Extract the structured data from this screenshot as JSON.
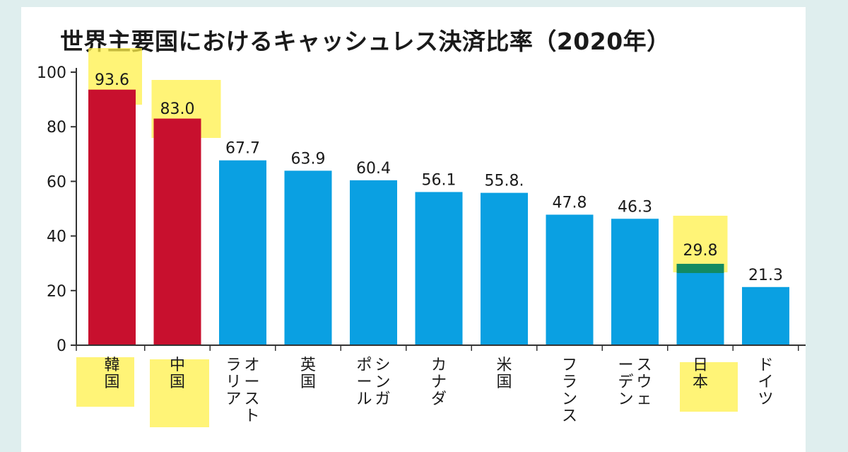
{
  "title": "世界主要国におけるキャッシュレス決済比率（2020年）",
  "colors": {
    "background": "#dfeeee",
    "highlight_bar": "#c8102e",
    "normal_bar": "#0aa0e2",
    "marker": "#fff04a",
    "japan_band": "#138a62",
    "axis": "#333333"
  },
  "chart_data": {
    "type": "bar",
    "title": "世界主要国におけるキャッシュレス決済比率（2020年）",
    "xlabel": "",
    "ylabel": "",
    "ylim": [
      0,
      100
    ],
    "yticks": [
      0,
      20,
      40,
      60,
      80,
      100
    ],
    "grid": false,
    "categories": [
      "韓国",
      "中国",
      "オーストラリア",
      "英国",
      "シンガポール",
      "カナダ",
      "米国",
      "フランス",
      "スウェーデン",
      "日本",
      "ドイツ"
    ],
    "values": [
      93.6,
      83.0,
      67.7,
      63.9,
      60.4,
      56.1,
      55.8,
      47.8,
      46.3,
      29.8,
      21.3
    ],
    "value_labels": [
      "93.6",
      "83.0",
      "67.7",
      "63.9",
      "60.4",
      "56.1",
      "55.8.",
      "47.8",
      "46.3",
      "29.8",
      "21.3"
    ],
    "highlighted": [
      "韓国",
      "中国"
    ],
    "marker_highlights": [
      "韓国",
      "中国",
      "日本"
    ]
  }
}
